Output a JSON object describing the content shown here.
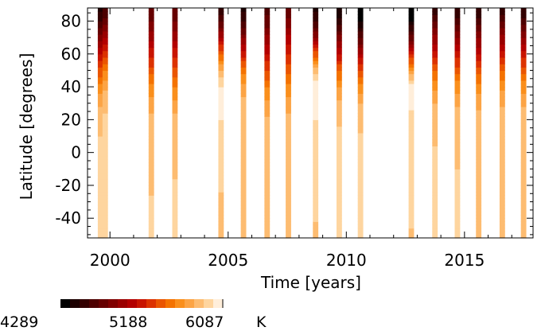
{
  "chart_data": {
    "type": "heatmap",
    "xlabel": "Time [years]",
    "ylabel": "Latitude [degrees]",
    "xlim": [
      1999.05,
      2017.9
    ],
    "ylim": [
      -52,
      88
    ],
    "x_ticks": [
      2000,
      2005,
      2010,
      2015
    ],
    "y_ticks": [
      -40,
      -20,
      0,
      20,
      40,
      60,
      80
    ],
    "strip_times": [
      1999.6,
      1999.8,
      2001.75,
      2002.75,
      2004.7,
      2005.65,
      2006.65,
      2007.55,
      2008.7,
      2009.7,
      2010.6,
      2012.75,
      2013.75,
      2014.7,
      2015.6,
      2016.6,
      2017.5
    ],
    "strip_width_years": 0.23,
    "profile_lat": [
      -52,
      -40,
      -20,
      0,
      20,
      30,
      40,
      50,
      60,
      70,
      80,
      88
    ],
    "strip_temperatures_K": [
      [
        5950,
        5940,
        5930,
        5900,
        5850,
        5760,
        5600,
        5380,
        5150,
        4850,
        4600,
        4450
      ],
      [
        5950,
        5940,
        5930,
        5920,
        5900,
        5850,
        5750,
        5550,
        5300,
        5000,
        4750,
        4600
      ],
      [
        5900,
        5890,
        5870,
        5840,
        5800,
        5720,
        5600,
        5400,
        5200,
        5000,
        4800,
        4700
      ],
      [
        5900,
        5890,
        5880,
        5860,
        5800,
        5700,
        5550,
        5400,
        5200,
        5000,
        4800,
        4700
      ],
      [
        5860,
        5860,
        5880,
        5920,
        5980,
        6050,
        6000,
        5800,
        5450,
        5050,
        4700,
        4500
      ],
      [
        5850,
        5850,
        5860,
        5860,
        5860,
        5820,
        5700,
        5500,
        5200,
        4900,
        4600,
        4450
      ],
      [
        5800,
        5800,
        5820,
        5820,
        5780,
        5700,
        5550,
        5350,
        5150,
        4950,
        4750,
        4650
      ],
      [
        5800,
        5810,
        5830,
        5830,
        5800,
        5720,
        5580,
        5400,
        5250,
        5050,
        4850,
        4750
      ],
      [
        5860,
        5880,
        5900,
        5930,
        5980,
        6080,
        6080,
        5850,
        5400,
        4950,
        4600,
        4450
      ],
      [
        5880,
        5890,
        5900,
        5900,
        5870,
        5800,
        5650,
        5450,
        5150,
        4850,
        4550,
        4400
      ],
      [
        5900,
        5910,
        5920,
        5900,
        5860,
        5760,
        5600,
        5350,
        5050,
        4700,
        4400,
        4300
      ],
      [
        5870,
        5880,
        5900,
        5930,
        5960,
        6000,
        6050,
        5700,
        5200,
        4750,
        4400,
        4300
      ],
      [
        5900,
        5900,
        5900,
        5880,
        5850,
        5780,
        5650,
        5450,
        5200,
        4950,
        4700,
        4550
      ],
      [
        5880,
        5880,
        5880,
        5870,
        5840,
        5760,
        5620,
        5420,
        5170,
        4920,
        4650,
        4500
      ],
      [
        5860,
        5860,
        5870,
        5860,
        5820,
        5740,
        5600,
        5400,
        5150,
        4900,
        4650,
        4500
      ],
      [
        5840,
        5850,
        5860,
        5850,
        5830,
        5760,
        5640,
        5450,
        5200,
        4950,
        4700,
        4550
      ],
      [
        5850,
        5850,
        5860,
        5850,
        5820,
        5750,
        5620,
        5420,
        5170,
        4920,
        4660,
        4500
      ]
    ],
    "colorbar": {
      "min": 4289,
      "max": 6087,
      "tick_labels": [
        "4289",
        "5188",
        "6087"
      ],
      "unit": "K",
      "colors": [
        "#000000",
        "#1c0000",
        "#330000",
        "#4d0000",
        "#660000",
        "#800000",
        "#9a0000",
        "#b30000",
        "#c81400",
        "#dc3200",
        "#ea5500",
        "#f47200",
        "#fa8f1c",
        "#fca445",
        "#fdbc71",
        "#fed59f",
        "#ffeeda"
      ]
    }
  }
}
